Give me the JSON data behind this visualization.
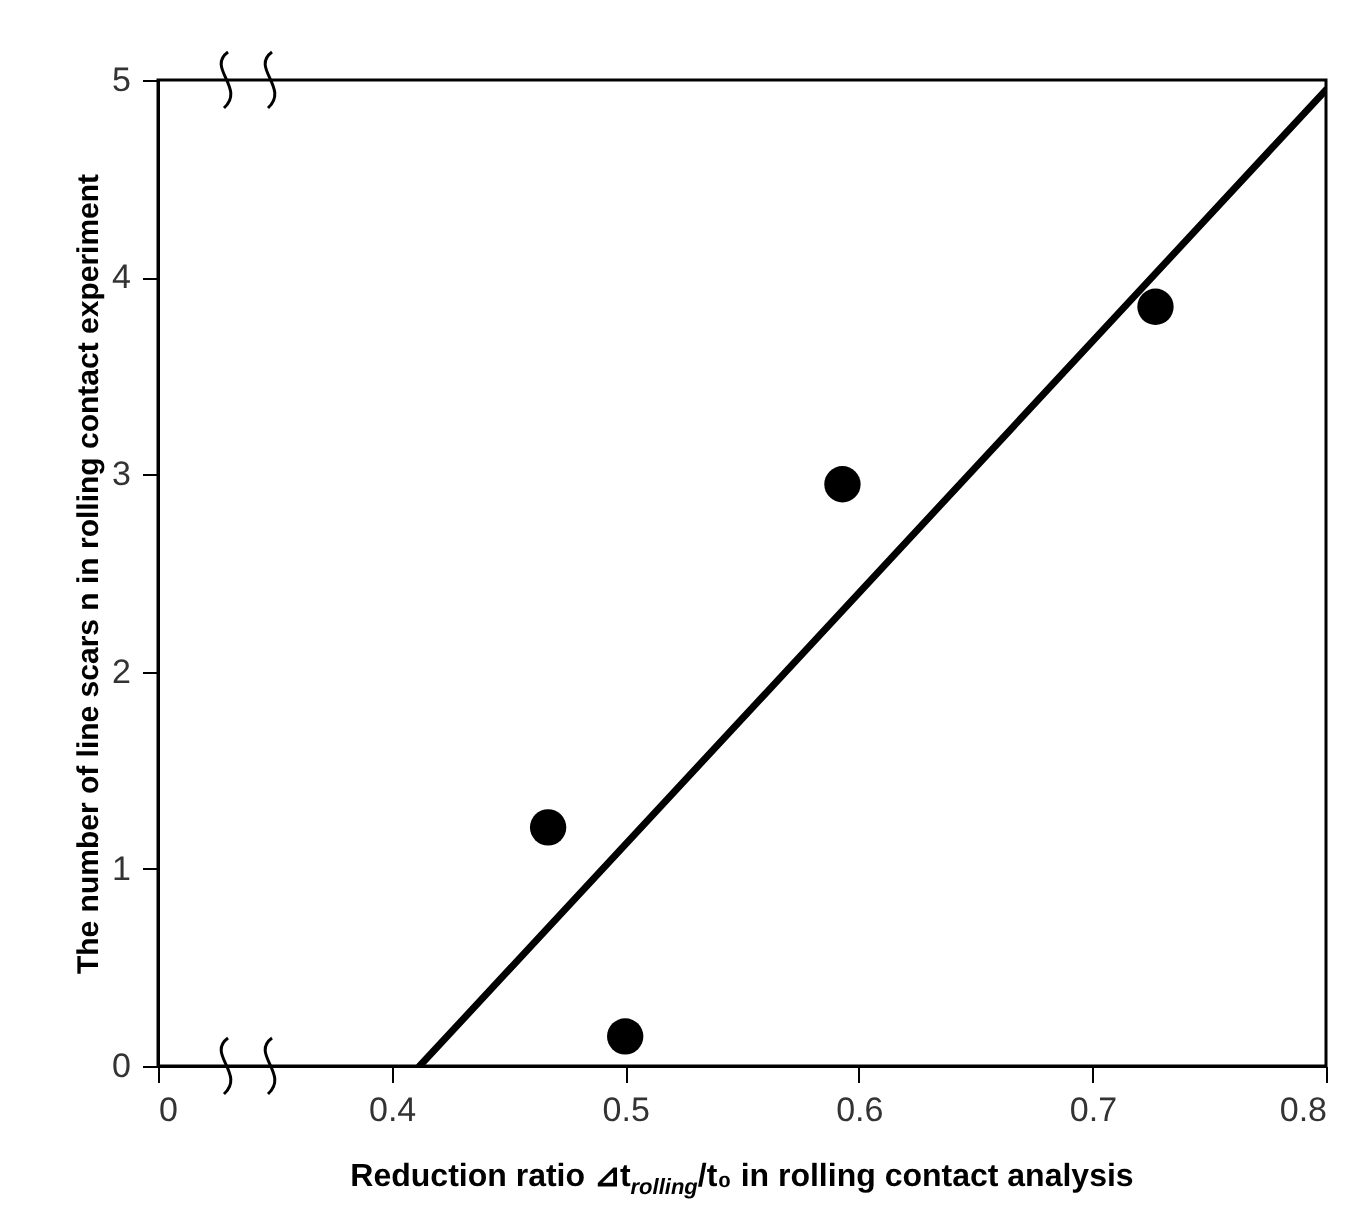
{
  "chart_data": {
    "type": "scatter",
    "xlabel": "Reduction ratio ⊿t$_{rolling}$/t₀ in rolling contact analysis",
    "ylabel": "The number of line scars n in rolling contact experiment",
    "xlim": [
      0.3,
      0.8
    ],
    "xticks": [
      {
        "value": 0.3,
        "label": "0"
      },
      0.4,
      0.5,
      0.6,
      0.7,
      0.8
    ],
    "ylim": [
      0,
      5
    ],
    "yticks": [
      0,
      1,
      2,
      3,
      4,
      5
    ],
    "marker": "circle",
    "series": [
      {
        "color": "#000000",
        "x": [
          0.467,
          0.5,
          0.593,
          0.727
        ],
        "values": [
          1.21,
          0.15,
          2.95,
          3.85
        ]
      },
      {
        "type": "line",
        "color": "#000000",
        "line_style": "solid",
        "marker": "none",
        "x": [
          0.412,
          0.8
        ],
        "values": [
          0,
          4.95
        ]
      }
    ]
  }
}
